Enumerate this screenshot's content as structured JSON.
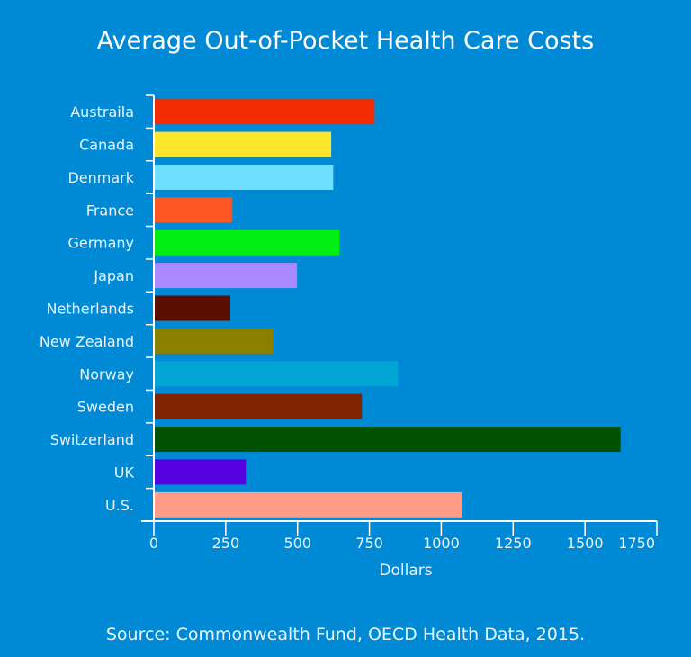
{
  "chart_data": {
    "type": "bar",
    "orientation": "horizontal",
    "title": "Average Out-of-Pocket Health Care Costs",
    "xlabel": "Dollars",
    "ylabel": "",
    "xlim": [
      0,
      1750
    ],
    "xticks": [
      0,
      250,
      500,
      750,
      1000,
      1250,
      1500,
      1750
    ],
    "grid": false,
    "categories": [
      "Austraila",
      "Canada",
      "Denmark",
      "France",
      "Germany",
      "Japan",
      "Netherlands",
      "New Zealand",
      "Norway",
      "Sweden",
      "Switzerland",
      "UK",
      "U.S."
    ],
    "values": [
      768,
      617,
      624,
      273,
      646,
      498,
      266,
      414,
      850,
      724,
      1624,
      320,
      1072
    ],
    "colors": [
      "#f22b00",
      "#ffe52a",
      "#6ee0ff",
      "#ff5722",
      "#00ee12",
      "#aa88ff",
      "#5a0e00",
      "#8b7f00",
      "#00a5d6",
      "#802400",
      "#005100",
      "#5500e0",
      "#ff9d8a"
    ],
    "source": "Source: Commonwealth Fund, OECD Health Data, 2015."
  }
}
